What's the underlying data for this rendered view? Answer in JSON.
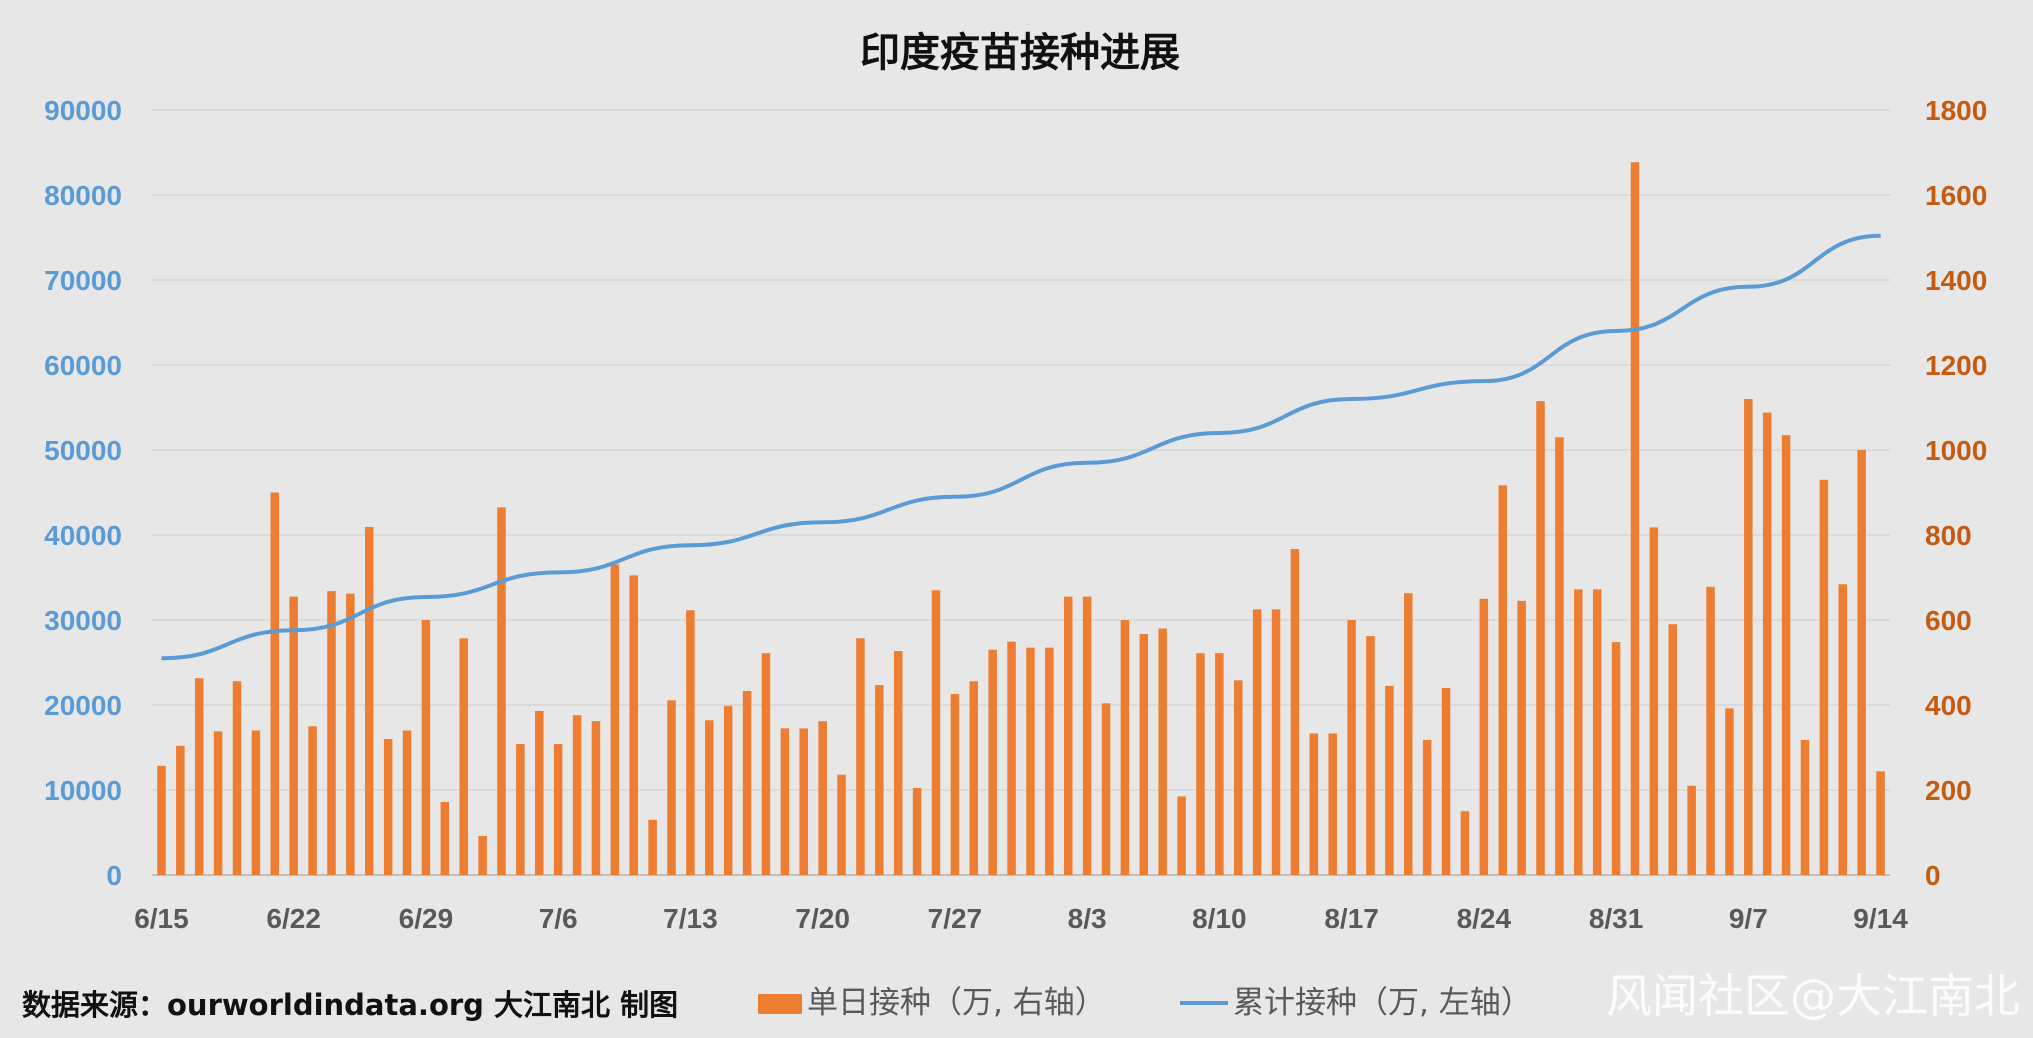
{
  "chart_data": {
    "type": "bar",
    "title": "印度疫苗接种进展",
    "x_tick_labels": [
      "6/15",
      "6/22",
      "6/29",
      "7/6",
      "7/13",
      "7/20",
      "7/27",
      "8/3",
      "8/10",
      "8/17",
      "8/24",
      "8/31",
      "9/7",
      "9/14"
    ],
    "left_axis": {
      "ticks": [
        "0",
        "10000",
        "20000",
        "30000",
        "40000",
        "50000",
        "60000",
        "70000",
        "80000",
        "90000"
      ],
      "range": [
        0,
        90000
      ]
    },
    "right_axis": {
      "ticks": [
        "0",
        "200",
        "400",
        "600",
        "800",
        "1000",
        "1200",
        "1400",
        "1600",
        "1800"
      ],
      "range": [
        0,
        1800
      ]
    },
    "grid": true,
    "legend_position": "bottom",
    "series": [
      {
        "name": "单日接种（万, 右轴）",
        "type": "bar",
        "axis": "right",
        "color": "#ed7d31",
        "x": [
          "6/15",
          "6/16",
          "6/17",
          "6/18",
          "6/19",
          "6/20",
          "6/21",
          "6/22",
          "6/23",
          "6/24",
          "6/25",
          "6/26",
          "6/27",
          "6/28",
          "6/29",
          "6/30",
          "7/1",
          "7/2",
          "7/3",
          "7/4",
          "7/5",
          "7/6",
          "7/7",
          "7/8",
          "7/9",
          "7/10",
          "7/11",
          "7/12",
          "7/13",
          "7/14",
          "7/15",
          "7/16",
          "7/17",
          "7/18",
          "7/19",
          "7/20",
          "7/21",
          "7/22",
          "7/23",
          "7/24",
          "7/25",
          "7/26",
          "7/27",
          "7/28",
          "7/29",
          "7/30",
          "7/31",
          "8/1",
          "8/2",
          "8/3",
          "8/4",
          "8/5",
          "8/6",
          "8/7",
          "8/8",
          "8/9",
          "8/10",
          "8/11",
          "8/12",
          "8/13",
          "8/14",
          "8/15",
          "8/16",
          "8/17",
          "8/18",
          "8/19",
          "8/20",
          "8/21",
          "8/22",
          "8/23",
          "8/24",
          "8/25",
          "8/26",
          "8/27",
          "8/28",
          "8/29",
          "8/30",
          "8/31",
          "9/1",
          "9/2",
          "9/3",
          "9/4",
          "9/5",
          "9/6",
          "9/7",
          "9/8",
          "9/9",
          "9/10",
          "9/11",
          "9/12",
          "9/13",
          "9/14"
        ],
        "values": [
          257,
          304,
          463,
          338,
          456,
          340,
          900,
          655,
          350,
          668,
          662,
          819,
          320,
          340,
          600,
          172,
          557,
          92,
          865,
          308,
          386,
          308,
          376,
          362,
          731,
          705,
          130,
          411,
          623,
          364,
          398,
          433,
          522,
          345,
          345,
          362,
          236,
          557,
          447,
          527,
          205,
          670,
          426,
          456,
          530,
          549,
          535,
          535,
          655,
          655,
          404,
          600,
          567,
          580,
          185,
          522,
          522,
          458,
          625,
          625,
          767,
          333,
          333,
          600,
          562,
          445,
          663,
          318,
          440,
          150,
          650,
          917,
          645,
          1115,
          1030,
          672,
          672,
          548,
          1677,
          818,
          590,
          210,
          678,
          392,
          1120,
          1088,
          1035,
          318,
          930,
          684,
          1000,
          244
        ]
      },
      {
        "name": "累计接种（万, 左轴）",
        "type": "line",
        "axis": "left",
        "color": "#5b9bd5",
        "x": [
          "6/15",
          "6/22",
          "6/29",
          "7/6",
          "7/13",
          "7/20",
          "7/27",
          "8/3",
          "8/10",
          "8/17",
          "8/24",
          "8/31",
          "9/7",
          "9/14"
        ],
        "values": [
          25500,
          28800,
          32700,
          35600,
          38800,
          41500,
          44500,
          48500,
          52000,
          56000,
          58100,
          64000,
          69200,
          75200
        ]
      }
    ],
    "source_note": "数据来源：ourworldindata.org 大江南北 制图",
    "watermark": "风闻社区@大江南北"
  }
}
